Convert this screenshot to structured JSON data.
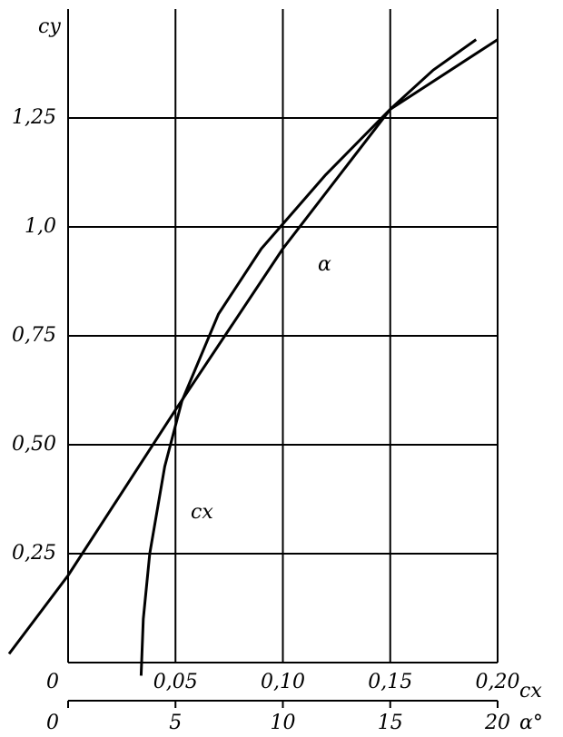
{
  "chart_data": {
    "type": "line",
    "y_label": "cy",
    "x_label": "cx",
    "x2_label": "α°",
    "xlim": [
      0,
      0.2
    ],
    "x2lim": [
      0,
      20
    ],
    "ylim": [
      0,
      1.5
    ],
    "xticks": [
      {
        "value": 0,
        "label": "0"
      },
      {
        "value": 0.05,
        "label": "0,05"
      },
      {
        "value": 0.1,
        "label": "0,10"
      },
      {
        "value": 0.15,
        "label": "0,15"
      },
      {
        "value": 0.2,
        "label": "0,20"
      }
    ],
    "x2ticks": [
      0,
      5,
      10,
      15,
      20
    ],
    "yticks": [
      {
        "value": 0.25,
        "label": "0,25"
      },
      {
        "value": 0.5,
        "label": "0,50"
      },
      {
        "value": 0.75,
        "label": "0,75"
      },
      {
        "value": 1.0,
        "label": "1,0"
      },
      {
        "value": 1.25,
        "label": "1,25"
      }
    ],
    "grid": true,
    "series": [
      {
        "name": "cx",
        "color": "#000000",
        "x": [
          0.034,
          0.035,
          0.038,
          0.045,
          0.053,
          0.07,
          0.09,
          0.12,
          0.15,
          0.17,
          0.19
        ],
        "values": [
          -0.03,
          0.1,
          0.25,
          0.45,
          0.6,
          0.8,
          0.95,
          1.12,
          1.27,
          1.36,
          1.43
        ]
      },
      {
        "name": "α",
        "color": "#000000",
        "axis": "x2",
        "x": [
          -2.75,
          0,
          5,
          10,
          15,
          20
        ],
        "values": [
          0.02,
          0.2,
          0.58,
          0.95,
          1.27,
          1.43
        ]
      }
    ]
  }
}
